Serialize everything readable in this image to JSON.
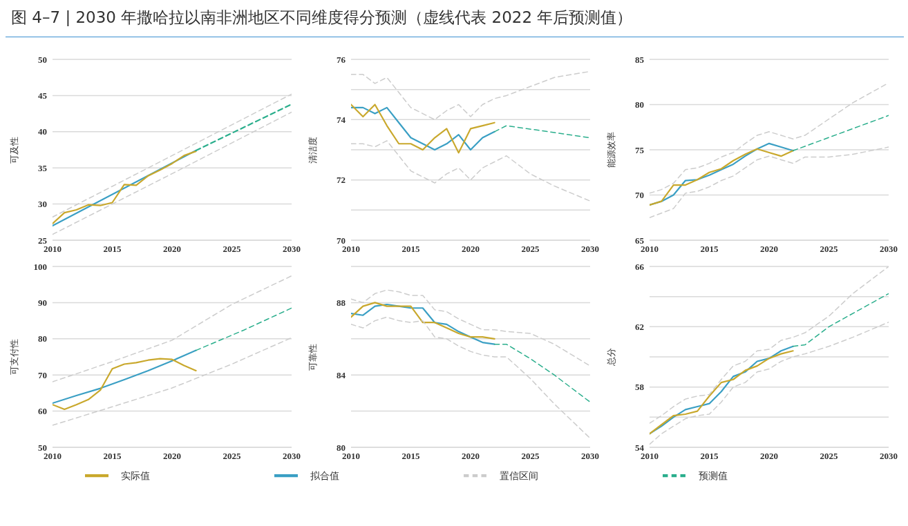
{
  "chart_data": [
    {
      "type": "line",
      "title": "图 4–7 | 2030 年撒哈拉以南非洲地区不同维度得分预测（虚线代表 2022 年后预测值）",
      "ylabel": "可及性",
      "xlim": [
        2010,
        2030
      ],
      "xticks": [
        2010,
        2015,
        2020,
        2025,
        2030
      ],
      "ylim": [
        25,
        50
      ],
      "yticks": [
        25,
        30,
        35,
        40,
        45,
        50
      ],
      "grid": "y",
      "legend": "bottom",
      "marker": "none",
      "series": [
        {
          "name": "拟合值",
          "color": "#3a9fc4",
          "x": [
            2010,
            2022
          ],
          "values": [
            27.0,
            37.4
          ]
        },
        {
          "name": "实际值",
          "color": "#c9a82c",
          "x": [
            2010,
            2011,
            2012,
            2013,
            2014,
            2015,
            2016,
            2017,
            2018,
            2019,
            2020,
            2021,
            2022
          ],
          "values": [
            27.3,
            28.8,
            29.2,
            29.9,
            29.8,
            30.2,
            32.7,
            32.6,
            33.9,
            34.7,
            35.6,
            36.7,
            37.3
          ]
        },
        {
          "name": "置信区间",
          "color": "#cccccc",
          "line_style": "dashed",
          "x": [
            2010,
            2020,
            2030
          ],
          "values": [
            28.2,
            36.7,
            45.2
          ]
        },
        {
          "color": "#cccccc",
          "line_style": "dashed",
          "x": [
            2010,
            2020,
            2030
          ],
          "values": [
            25.8,
            34.2,
            42.7
          ]
        },
        {
          "name": "预测值",
          "color": "#2aae8c",
          "line_style": "dashed",
          "x": [
            2022,
            2030
          ],
          "values": [
            37.4,
            43.8
          ]
        }
      ]
    },
    {
      "type": "line",
      "ylabel": "清洁度",
      "xlim": [
        2010,
        2030
      ],
      "xticks": [
        2010,
        2015,
        2020,
        2025,
        2030
      ],
      "ylim": [
        70,
        76
      ],
      "yticks": [
        70,
        {
          "value": 71,
          "label": null
        },
        72,
        {
          "value": 73,
          "label": null
        },
        74,
        {
          "value": 75,
          "label": null
        },
        76
      ],
      "grid": "y",
      "marker": "none",
      "series": [
        {
          "color": "#3a9fc4",
          "x": [
            2010,
            2011,
            2012,
            2013,
            2014,
            2015,
            2016,
            2017,
            2018,
            2019,
            2020,
            2021,
            2022
          ],
          "values": [
            74.4,
            74.4,
            74.2,
            74.4,
            73.9,
            73.4,
            73.2,
            73.0,
            73.2,
            73.5,
            73.0,
            73.4,
            73.6
          ]
        },
        {
          "color": "#c9a82c",
          "x": [
            2010,
            2011,
            2012,
            2013,
            2014,
            2015,
            2016,
            2017,
            2018,
            2019,
            2020,
            2021,
            2022
          ],
          "values": [
            74.5,
            74.1,
            74.5,
            73.8,
            73.2,
            73.2,
            73.0,
            73.4,
            73.7,
            72.9,
            73.7,
            73.8,
            73.9
          ]
        },
        {
          "color": "#cccccc",
          "line_style": "dashed",
          "x": [
            2010,
            2011,
            2012,
            2013,
            2014,
            2015,
            2016,
            2017,
            2018,
            2019,
            2020,
            2021,
            2022,
            2023,
            2025,
            2027,
            2030
          ],
          "values": [
            75.5,
            75.5,
            75.2,
            75.4,
            74.9,
            74.4,
            74.2,
            74.0,
            74.3,
            74.5,
            74.1,
            74.5,
            74.7,
            74.8,
            75.1,
            75.4,
            75.6
          ]
        },
        {
          "color": "#cccccc",
          "line_style": "dashed",
          "x": [
            2010,
            2011,
            2012,
            2013,
            2014,
            2015,
            2016,
            2017,
            2018,
            2019,
            2020,
            2021,
            2022,
            2023,
            2025,
            2027,
            2030
          ],
          "values": [
            73.2,
            73.2,
            73.1,
            73.3,
            72.8,
            72.3,
            72.1,
            71.9,
            72.2,
            72.4,
            72.0,
            72.4,
            72.6,
            72.8,
            72.2,
            71.8,
            71.3
          ]
        },
        {
          "color": "#2aae8c",
          "line_style": "dashed",
          "x": [
            2022,
            2023,
            2030
          ],
          "values": [
            73.6,
            73.8,
            73.4
          ]
        }
      ]
    },
    {
      "type": "line",
      "ylabel": "能源效率",
      "xlim": [
        2010,
        2030
      ],
      "xticks": [
        2010,
        2015,
        2020,
        2025,
        2030
      ],
      "ylim": [
        65,
        85
      ],
      "yticks": [
        65,
        70,
        75,
        80,
        85
      ],
      "grid": "y",
      "marker": "none",
      "series": [
        {
          "color": "#3a9fc4",
          "x": [
            2010,
            2011,
            2012,
            2013,
            2014,
            2015,
            2016,
            2017,
            2018,
            2019,
            2020,
            2021,
            2022
          ],
          "values": [
            68.9,
            69.3,
            70.0,
            71.6,
            71.7,
            72.2,
            72.8,
            73.4,
            74.3,
            75.1,
            75.7,
            75.3,
            74.9
          ]
        },
        {
          "color": "#c9a82c",
          "x": [
            2010,
            2011,
            2012,
            2013,
            2014,
            2015,
            2016,
            2017,
            2018,
            2019,
            2020,
            2021,
            2022
          ],
          "values": [
            68.9,
            69.3,
            71.1,
            71.1,
            71.7,
            72.5,
            72.9,
            73.8,
            74.5,
            75.1,
            74.7,
            74.3,
            74.9
          ]
        },
        {
          "color": "#cccccc",
          "line_style": "dashed",
          "x": [
            2010,
            2011,
            2012,
            2013,
            2014,
            2015,
            2016,
            2017,
            2018,
            2019,
            2020,
            2021,
            2022,
            2023,
            2025,
            2027,
            2030
          ],
          "values": [
            70.2,
            70.6,
            71.3,
            72.8,
            73.0,
            73.5,
            74.2,
            74.7,
            75.7,
            76.6,
            77.0,
            76.6,
            76.2,
            76.6,
            78.4,
            80.2,
            82.4
          ]
        },
        {
          "color": "#cccccc",
          "line_style": "dashed",
          "x": [
            2010,
            2011,
            2012,
            2013,
            2014,
            2015,
            2016,
            2017,
            2018,
            2019,
            2020,
            2021,
            2022,
            2023,
            2025,
            2027,
            2030
          ],
          "values": [
            67.5,
            68.0,
            68.5,
            70.2,
            70.4,
            70.9,
            71.6,
            72.1,
            73.0,
            73.9,
            74.3,
            73.9,
            73.5,
            74.2,
            74.2,
            74.5,
            75.3
          ]
        },
        {
          "color": "#2aae8c",
          "line_style": "dashed",
          "x": [
            2022,
            2030
          ],
          "values": [
            74.9,
            78.8
          ]
        }
      ]
    },
    {
      "type": "line",
      "ylabel": "可支付性",
      "xlim": [
        2010,
        2030
      ],
      "xticks": [
        2010,
        2015,
        2020,
        2025,
        2030
      ],
      "ylim": [
        50,
        100
      ],
      "yticks": [
        50,
        60,
        70,
        80,
        90,
        100
      ],
      "grid": "y",
      "marker": "none",
      "series": [
        {
          "color": "#3a9fc4",
          "x": [
            2010,
            2012,
            2014,
            2016,
            2018,
            2020,
            2022
          ],
          "values": [
            62.2,
            64.3,
            66.3,
            68.7,
            71.2,
            73.9,
            76.8
          ]
        },
        {
          "color": "#c9a82c",
          "x": [
            2010,
            2011,
            2012,
            2013,
            2014,
            2015,
            2016,
            2017,
            2018,
            2019,
            2020,
            2021,
            2022
          ],
          "values": [
            61.8,
            60.5,
            61.8,
            63.2,
            65.8,
            71.7,
            73.0,
            73.4,
            74.1,
            74.5,
            74.3,
            72.6,
            71.2
          ]
        },
        {
          "color": "#cccccc",
          "line_style": "dashed",
          "x": [
            2010,
            2015,
            2020,
            2025,
            2030
          ],
          "values": [
            68.1,
            73.7,
            79.6,
            89.5,
            97.4
          ]
        },
        {
          "color": "#cccccc",
          "line_style": "dashed",
          "x": [
            2010,
            2015,
            2020,
            2025,
            2030
          ],
          "values": [
            56.1,
            61.2,
            66.4,
            73.0,
            80.3
          ]
        },
        {
          "color": "#2aae8c",
          "line_style": "dashed",
          "x": [
            2022,
            2026,
            2030
          ],
          "values": [
            76.8,
            82.4,
            88.5
          ]
        }
      ]
    },
    {
      "type": "line",
      "ylabel": "可靠性",
      "xlim": [
        2010,
        2030
      ],
      "xticks": [
        2010,
        2015,
        2020,
        2025,
        2030
      ],
      "ylim": [
        80,
        90
      ],
      "yticks": [
        80,
        {
          "value": 82,
          "label": null
        },
        84,
        {
          "value": 86,
          "label": null
        },
        88,
        {
          "value": 90,
          "label": null
        }
      ],
      "grid": "y",
      "marker": "none",
      "series": [
        {
          "color": "#3a9fc4",
          "x": [
            2010,
            2011,
            2012,
            2013,
            2014,
            2015,
            2016,
            2017,
            2018,
            2019,
            2020,
            2021,
            2022
          ],
          "values": [
            87.4,
            87.3,
            87.8,
            87.9,
            87.8,
            87.7,
            87.7,
            86.9,
            86.8,
            86.4,
            86.1,
            85.8,
            85.7
          ]
        },
        {
          "color": "#c9a82c",
          "x": [
            2010,
            2011,
            2012,
            2013,
            2014,
            2015,
            2016,
            2017,
            2018,
            2019,
            2020,
            2021,
            2022
          ],
          "values": [
            87.2,
            87.8,
            88.0,
            87.8,
            87.8,
            87.8,
            86.9,
            86.9,
            86.6,
            86.3,
            86.1,
            86.1,
            86.0
          ]
        },
        {
          "color": "#cccccc",
          "line_style": "dashed",
          "x": [
            2010,
            2011,
            2012,
            2013,
            2014,
            2015,
            2016,
            2017,
            2018,
            2019,
            2020,
            2021,
            2022,
            2023,
            2025,
            2027,
            2030
          ],
          "values": [
            88.2,
            88.0,
            88.5,
            88.7,
            88.6,
            88.4,
            88.4,
            87.6,
            87.5,
            87.1,
            86.8,
            86.5,
            86.5,
            86.4,
            86.3,
            85.7,
            84.5
          ]
        },
        {
          "color": "#cccccc",
          "line_style": "dashed",
          "x": [
            2010,
            2011,
            2012,
            2013,
            2014,
            2015,
            2016,
            2017,
            2018,
            2019,
            2020,
            2021,
            2022,
            2023,
            2025,
            2027,
            2030
          ],
          "values": [
            86.8,
            86.6,
            87.0,
            87.2,
            87.0,
            86.9,
            87.0,
            86.1,
            86.0,
            85.6,
            85.3,
            85.1,
            85.0,
            85.0,
            83.8,
            82.4,
            80.5
          ]
        },
        {
          "color": "#2aae8c",
          "line_style": "dashed",
          "x": [
            2022,
            2023,
            2025,
            2027,
            2030
          ],
          "values": [
            85.7,
            85.7,
            84.9,
            84.0,
            82.5
          ]
        }
      ]
    },
    {
      "type": "line",
      "ylabel": "总分",
      "xlim": [
        2010,
        2030
      ],
      "xticks": [
        2010,
        2015,
        2020,
        2025,
        2030
      ],
      "ylim": [
        54,
        66
      ],
      "yticks": [
        54,
        {
          "value": 56,
          "label": null
        },
        58,
        {
          "value": 60,
          "label": null
        },
        62,
        {
          "value": 64,
          "label": null
        },
        66
      ],
      "grid": "y",
      "marker": "none",
      "series": [
        {
          "color": "#3a9fc4",
          "x": [
            2010,
            2011,
            2012,
            2013,
            2014,
            2015,
            2016,
            2017,
            2018,
            2019,
            2020,
            2021,
            2022
          ],
          "values": [
            54.9,
            55.4,
            56.0,
            56.5,
            56.7,
            56.9,
            57.7,
            58.7,
            59.0,
            59.7,
            59.9,
            60.4,
            60.7
          ]
        },
        {
          "color": "#c9a82c",
          "x": [
            2010,
            2011,
            2012,
            2013,
            2014,
            2015,
            2016,
            2017,
            2018,
            2019,
            2020,
            2021,
            2022
          ],
          "values": [
            54.9,
            55.5,
            56.1,
            56.2,
            56.4,
            57.4,
            58.3,
            58.5,
            59.1,
            59.4,
            59.9,
            60.2,
            60.4
          ]
        },
        {
          "color": "#cccccc",
          "line_style": "dashed",
          "x": [
            2010,
            2011,
            2012,
            2013,
            2014,
            2015,
            2016,
            2017,
            2018,
            2019,
            2020,
            2021,
            2022,
            2023,
            2025,
            2027,
            2030
          ],
          "values": [
            55.6,
            56.1,
            56.7,
            57.2,
            57.4,
            57.5,
            58.5,
            59.4,
            59.7,
            60.4,
            60.5,
            61.1,
            61.3,
            61.6,
            62.7,
            64.2,
            66.0
          ]
        },
        {
          "color": "#cccccc",
          "line_style": "dashed",
          "x": [
            2010,
            2011,
            2012,
            2013,
            2014,
            2015,
            2016,
            2017,
            2018,
            2019,
            2020,
            2021,
            2022,
            2023,
            2025,
            2027,
            2030
          ],
          "values": [
            54.2,
            54.9,
            55.4,
            55.9,
            56.1,
            56.2,
            57.0,
            58.0,
            58.3,
            59.0,
            59.2,
            59.7,
            60.0,
            60.2,
            60.7,
            61.3,
            62.3
          ]
        },
        {
          "color": "#2aae8c",
          "line_style": "dashed",
          "x": [
            2022,
            2023,
            2025,
            2030
          ],
          "values": [
            60.7,
            60.8,
            62.0,
            64.2
          ]
        }
      ]
    }
  ]
}
